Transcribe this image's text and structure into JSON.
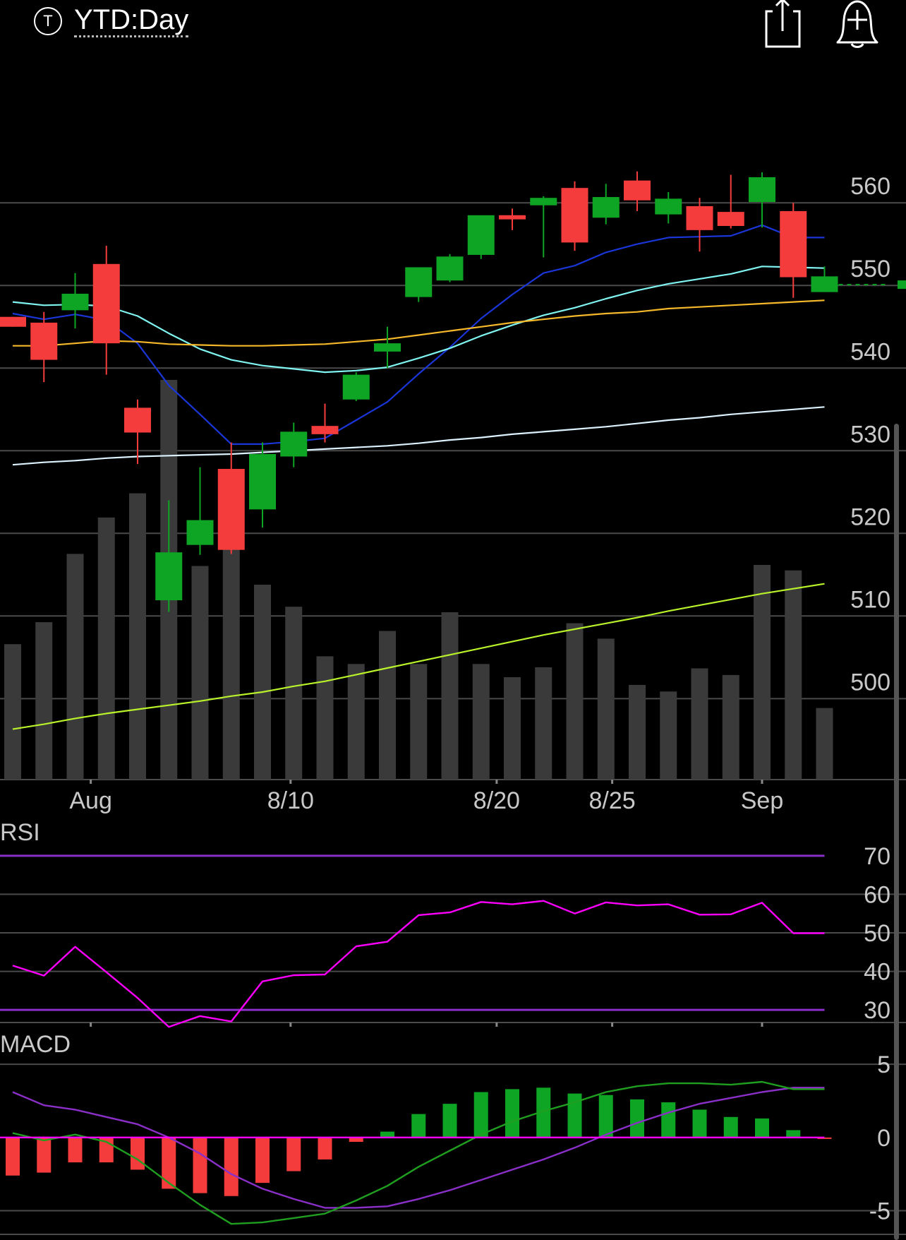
{
  "header": {
    "symbol_icon_letter": "T",
    "title": "YTD:Day",
    "share_icon": "share-icon",
    "alert_icon": "add-alert-bell-icon"
  },
  "colors": {
    "up": "#0ea524",
    "down": "#f43c3c",
    "ma_blue": "#1a36d8",
    "ma_cyan": "#7ff4f0",
    "ma_orange": "#f5b82a",
    "ma_white": "#ddf2ff",
    "ma_lime": "#b9f22a",
    "volume": "#3a3a3a",
    "rsi_line": "#ff00ff",
    "rsi_bounds": "#8a2fc8",
    "macd_line": "#1f9e20",
    "signal_line": "#8a2fc8",
    "zero_line": "#ff00ff",
    "grid": "#4a4a4a"
  },
  "chart_data": [
    {
      "type": "candlestick",
      "name": "price",
      "y_ticks": [
        "560",
        "550",
        "540",
        "530",
        "520",
        "510",
        "500"
      ],
      "y_tick_values": [
        560,
        550,
        540,
        530,
        520,
        510,
        500
      ],
      "ylim": [
        490.2,
        576.0
      ],
      "x_tick_labels": [
        {
          "label": "Aug",
          "index": 2.5
        },
        {
          "label": "8/10",
          "index": 8.9
        },
        {
          "label": "8/20",
          "index": 15.5
        },
        {
          "label": "8/25",
          "index": 19.2
        },
        {
          "label": "Sep",
          "index": 24.0
        }
      ],
      "candles": [
        {
          "open": 546.2,
          "high": 546.2,
          "low": 545.0,
          "close": 545.0
        },
        {
          "open": 545.5,
          "high": 546.8,
          "low": 538.3,
          "close": 541.0
        },
        {
          "open": 547.0,
          "high": 551.5,
          "low": 544.8,
          "close": 549.0
        },
        {
          "open": 552.6,
          "high": 554.8,
          "low": 539.2,
          "close": 543.0
        },
        {
          "open": 535.2,
          "high": 536.2,
          "low": 528.4,
          "close": 532.2
        },
        {
          "open": 511.9,
          "high": 524.0,
          "low": 510.5,
          "close": 517.7
        },
        {
          "open": 518.6,
          "high": 528.0,
          "low": 517.4,
          "close": 521.6
        },
        {
          "open": 527.8,
          "high": 531.0,
          "low": 517.5,
          "close": 518.0
        },
        {
          "open": 522.9,
          "high": 531.0,
          "low": 520.7,
          "close": 529.6
        },
        {
          "open": 529.3,
          "high": 533.4,
          "low": 528.0,
          "close": 532.3
        },
        {
          "open": 533.0,
          "high": 535.7,
          "low": 531.0,
          "close": 532.0
        },
        {
          "open": 536.2,
          "high": 539.5,
          "low": 536.0,
          "close": 539.2
        },
        {
          "open": 542.0,
          "high": 545.0,
          "low": 540.0,
          "close": 543.0
        },
        {
          "open": 548.6,
          "high": 552.0,
          "low": 548.0,
          "close": 552.2
        },
        {
          "open": 550.6,
          "high": 553.8,
          "low": 550.4,
          "close": 553.5
        },
        {
          "open": 553.7,
          "high": 558.4,
          "low": 553.2,
          "close": 558.5
        },
        {
          "open": 558.5,
          "high": 559.3,
          "low": 556.7,
          "close": 558.0
        },
        {
          "open": 559.7,
          "high": 560.8,
          "low": 553.4,
          "close": 560.6
        },
        {
          "open": 561.8,
          "high": 562.6,
          "low": 554.2,
          "close": 555.2
        },
        {
          "open": 558.2,
          "high": 562.3,
          "low": 557.4,
          "close": 560.7
        },
        {
          "open": 562.7,
          "high": 563.8,
          "low": 559.0,
          "close": 560.3
        },
        {
          "open": 558.6,
          "high": 561.3,
          "low": 557.5,
          "close": 560.5
        },
        {
          "open": 559.6,
          "high": 560.6,
          "low": 554.1,
          "close": 556.7
        },
        {
          "open": 558.9,
          "high": 563.4,
          "low": 556.9,
          "close": 557.2
        },
        {
          "open": 560.1,
          "high": 563.7,
          "low": 557.0,
          "close": 563.1
        },
        {
          "open": 559.0,
          "high": 560.0,
          "low": 548.5,
          "close": 551.0
        },
        {
          "open": 549.2,
          "high": 552.3,
          "low": 549.2,
          "close": 551.1
        }
      ],
      "ma_series": [
        {
          "color_key": "ma_blue",
          "values": [
            546.6,
            545.9,
            546.5,
            545.8,
            543.0,
            537.9,
            534.4,
            530.8,
            530.8,
            531.1,
            531.5,
            533.7,
            535.9,
            539.3,
            542.5,
            546.0,
            548.9,
            551.5,
            552.4,
            554.0,
            555.0,
            555.8,
            555.9,
            556.0,
            557.3,
            555.8,
            555.8
          ]
        },
        {
          "color_key": "ma_cyan",
          "values": [
            548.0,
            547.6,
            547.7,
            547.5,
            546.3,
            544.2,
            542.3,
            541.0,
            540.3,
            539.9,
            539.5,
            539.7,
            540.1,
            541.2,
            542.4,
            543.9,
            545.2,
            546.4,
            547.3,
            548.4,
            549.4,
            550.2,
            550.8,
            551.4,
            552.3,
            552.2,
            552.1
          ]
        },
        {
          "color_key": "ma_orange",
          "values": [
            542.7,
            542.7,
            543.0,
            543.3,
            543.2,
            542.9,
            542.8,
            542.7,
            542.7,
            542.8,
            542.9,
            543.2,
            543.5,
            544.0,
            544.5,
            545.0,
            545.5,
            545.9,
            546.3,
            546.6,
            546.8,
            547.2,
            547.4,
            547.6,
            547.8,
            548.0,
            548.2
          ]
        },
        {
          "color_key": "ma_white",
          "values": [
            528.3,
            528.6,
            528.8,
            529.1,
            529.3,
            529.4,
            529.5,
            529.6,
            529.8,
            530.0,
            530.2,
            530.4,
            530.6,
            530.9,
            531.3,
            531.6,
            532.0,
            532.3,
            532.6,
            532.9,
            533.3,
            533.7,
            534.0,
            534.4,
            534.7,
            535.0,
            535.3
          ]
        },
        {
          "color_key": "ma_lime",
          "values": [
            496.3,
            496.9,
            497.6,
            498.2,
            498.7,
            499.2,
            499.7,
            500.3,
            500.8,
            501.5,
            502.1,
            502.9,
            503.7,
            504.5,
            505.3,
            506.1,
            506.9,
            507.7,
            508.4,
            509.1,
            509.8,
            510.6,
            511.3,
            512.0,
            512.7,
            513.3,
            513.9
          ]
        }
      ],
      "last_price_marker": 550.1
    },
    {
      "type": "bar",
      "name": "volume",
      "values": [
        12.3,
        14.3,
        20.5,
        23.8,
        26.0,
        36.3,
        19.4,
        26.7,
        17.7,
        15.7,
        11.2,
        10.5,
        13.5,
        10.5,
        15.2,
        10.5,
        9.3,
        10.2,
        14.2,
        12.8,
        8.6,
        8.0,
        10.1,
        9.5,
        19.5,
        19.0,
        6.5
      ]
    },
    {
      "type": "line",
      "name": "RSI",
      "title": "RSI",
      "y_ticks": [
        "70",
        "60",
        "50",
        "40",
        "30"
      ],
      "y_tick_values": [
        70,
        60,
        50,
        40,
        30
      ],
      "ylim": [
        26.0,
        74.0
      ],
      "bounds": [
        70,
        30
      ],
      "values": [
        41.5,
        38.9,
        46.4,
        39.8,
        33.1,
        25.6,
        28.4,
        27.0,
        37.4,
        39.0,
        39.2,
        46.5,
        47.7,
        54.6,
        55.3,
        58.0,
        57.4,
        58.3,
        55.0,
        57.9,
        57.1,
        57.4,
        54.7,
        54.8,
        57.8,
        49.9,
        49.9
      ]
    },
    {
      "type": "bar+line",
      "name": "MACD",
      "title": "MACD",
      "y_ticks": [
        "5",
        "0",
        "-5"
      ],
      "y_tick_values": [
        5,
        0,
        -5
      ],
      "ylim": [
        -7.0,
        6.5
      ],
      "histogram": [
        -2.6,
        -2.4,
        -1.7,
        -1.7,
        -2.2,
        -3.5,
        -3.8,
        -4.0,
        -3.1,
        -2.3,
        -1.5,
        -0.3,
        0.4,
        1.6,
        2.3,
        3.1,
        3.3,
        3.4,
        3.0,
        2.9,
        2.6,
        2.4,
        1.9,
        1.4,
        1.3,
        0.5,
        -0.1
      ],
      "macd_line": [
        0.3,
        -0.2,
        0.2,
        -0.3,
        -1.5,
        -3.1,
        -4.6,
        -5.9,
        -5.8,
        -5.5,
        -5.2,
        -4.3,
        -3.3,
        -2.0,
        -0.9,
        0.2,
        1.1,
        1.8,
        2.4,
        3.1,
        3.5,
        3.7,
        3.7,
        3.6,
        3.8,
        3.3,
        3.3
      ],
      "signal_line": [
        3.1,
        2.2,
        1.9,
        1.4,
        0.9,
        0.0,
        -1.1,
        -2.5,
        -3.5,
        -4.2,
        -4.8,
        -4.8,
        -4.7,
        -4.2,
        -3.6,
        -2.9,
        -2.2,
        -1.5,
        -0.7,
        0.2,
        1.0,
        1.7,
        2.3,
        2.7,
        3.1,
        3.4,
        3.4
      ]
    }
  ]
}
